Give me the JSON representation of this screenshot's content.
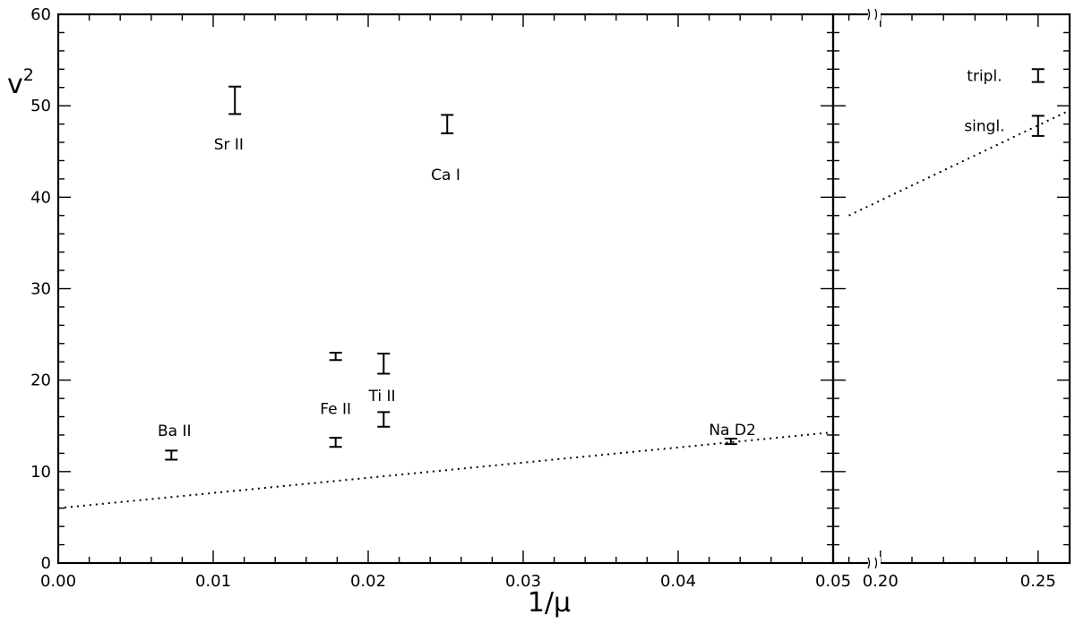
{
  "chart_data": {
    "type": "scatter",
    "xlabel": "1/μ",
    "ylabel": "v",
    "ylabel_superscript": "2",
    "ylim": [
      0,
      60
    ],
    "y_ticks": [
      0,
      10,
      20,
      30,
      40,
      50,
      60
    ],
    "y_minor_step": 2,
    "panels": [
      {
        "name": "main",
        "xlim": [
          0.0,
          0.05
        ],
        "x_ticks": [
          0.0,
          0.01,
          0.02,
          0.03,
          0.04,
          0.05
        ],
        "x_tick_labels": [
          "0.00",
          "0.01",
          "0.02",
          "0.03",
          "0.04",
          "0.05"
        ],
        "x_minor_step": 0.002,
        "points": [
          {
            "label": "Ba II",
            "x": 0.0073,
            "y": 11.8,
            "err": 0.5,
            "label_x": 0.0075,
            "label_y": 14.5
          },
          {
            "label": "Sr II",
            "x": 0.0114,
            "y": 50.6,
            "err": 1.5,
            "label_x": 0.011,
            "label_y": 45.8
          },
          {
            "label": "Fe II",
            "x": 0.0179,
            "y": 13.2,
            "err": 0.5,
            "label_x": 0.0179,
            "label_y": 16.9
          },
          {
            "label": "",
            "x": 0.0179,
            "y": 22.6,
            "err": 0.4
          },
          {
            "label": "Ti II",
            "x": 0.021,
            "y": 15.7,
            "err": 0.8,
            "label_x": 0.0209,
            "label_y": 18.3
          },
          {
            "label": "",
            "x": 0.021,
            "y": 21.8,
            "err": 1.1
          },
          {
            "label": "Ca I",
            "x": 0.0251,
            "y": 48.0,
            "err": 1.0,
            "label_x": 0.025,
            "label_y": 42.5
          },
          {
            "label": "Na D2",
            "x": 0.0434,
            "y": 13.3,
            "err": 0.3,
            "label_x": 0.0435,
            "label_y": 14.6
          }
        ],
        "fit_line": {
          "x": [
            0.0,
            0.05
          ],
          "y": [
            6.0,
            14.3
          ]
        }
      },
      {
        "name": "inset",
        "xlim": [
          0.185,
          0.26
        ],
        "x_ticks": [
          0.2,
          0.25
        ],
        "x_tick_labels": [
          "0.20",
          "0.25"
        ],
        "x_minor_step": 0.01,
        "points": [
          {
            "label": "tripl.",
            "x": 0.25,
            "y": 53.3,
            "err": 0.7,
            "label_x": 0.233,
            "label_y": 53.3
          },
          {
            "label": "singl.",
            "x": 0.25,
            "y": 47.8,
            "err": 1.1,
            "label_x": 0.233,
            "label_y": 47.8
          }
        ],
        "fit_line": {
          "x": [
            0.19,
            0.26
          ],
          "y": [
            38.0,
            49.5
          ]
        }
      }
    ]
  }
}
